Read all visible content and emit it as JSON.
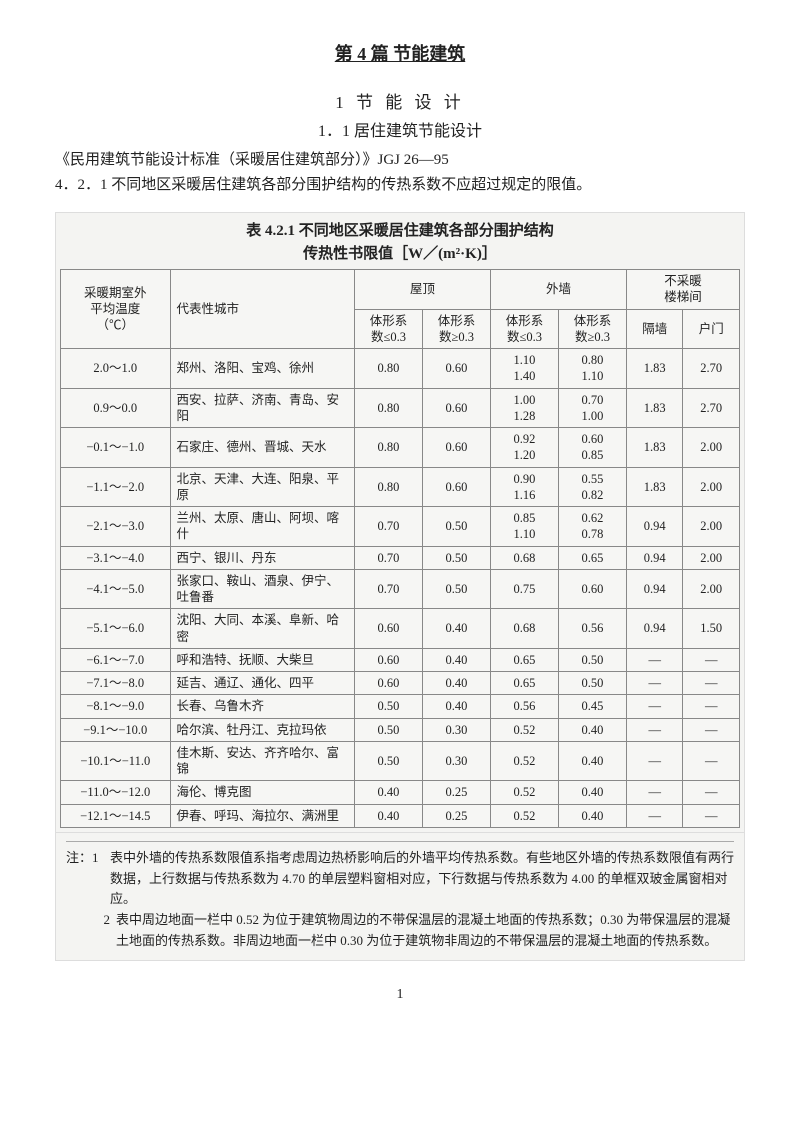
{
  "header": {
    "main_title": "第 4 篇  节能建筑",
    "section1": "1  节  能  设  计",
    "section2": "1．1  居住建筑节能设计",
    "para1": "《民用建筑节能设计标准（采暖居住建筑部分）》JGJ 26—95",
    "para2": "4．2．1  不同地区采暖居住建筑各部分围护结构的传热系数不应超过规定的限值。"
  },
  "table": {
    "title1": "表 4.2.1   不同地区采暖居住建筑各部分围护结构",
    "title2": "传热性书限值［W／(m²·K)］",
    "head": {
      "temp": "采暖期室外\n平均温度\n（℃）",
      "city": "代表性城市",
      "roof": "屋顶",
      "wall": "外墙",
      "stair": "不采暖\n楼梯间",
      "shape_le": "体形系\n数≤0.3",
      "shape_ge": "体形系\n数≥0.3",
      "partition": "隔墙",
      "door": "户门"
    },
    "rows": [
      {
        "temp": "2.0～1.0",
        "city": "郑州、洛阳、宝鸡、徐州",
        "roof_le": "0.80",
        "roof_ge": "0.60",
        "wall_le": "1.10\n1.40",
        "wall_ge": "0.80\n1.10",
        "part": "1.83",
        "door": "2.70"
      },
      {
        "temp": "0.9～0.0",
        "city": "西安、拉萨、济南、青岛、安阳",
        "roof_le": "0.80",
        "roof_ge": "0.60",
        "wall_le": "1.00\n1.28",
        "wall_ge": "0.70\n1.00",
        "part": "1.83",
        "door": "2.70"
      },
      {
        "temp": "−0.1～−1.0",
        "city": "石家庄、德州、晋城、天水",
        "roof_le": "0.80",
        "roof_ge": "0.60",
        "wall_le": "0.92\n1.20",
        "wall_ge": "0.60\n0.85",
        "part": "1.83",
        "door": "2.00"
      },
      {
        "temp": "−1.1～−2.0",
        "city": "北京、天津、大连、阳泉、平原",
        "roof_le": "0.80",
        "roof_ge": "0.60",
        "wall_le": "0.90\n1.16",
        "wall_ge": "0.55\n0.82",
        "part": "1.83",
        "door": "2.00"
      },
      {
        "temp": "−2.1～−3.0",
        "city": "兰州、太原、唐山、阿坝、喀什",
        "roof_le": "0.70",
        "roof_ge": "0.50",
        "wall_le": "0.85\n1.10",
        "wall_ge": "0.62\n0.78",
        "part": "0.94",
        "door": "2.00"
      },
      {
        "temp": "−3.1～−4.0",
        "city": "西宁、银川、丹东",
        "roof_le": "0.70",
        "roof_ge": "0.50",
        "wall_le": "0.68",
        "wall_ge": "0.65",
        "part": "0.94",
        "door": "2.00"
      },
      {
        "temp": "−4.1～−5.0",
        "city": "张家口、鞍山、酒泉、伊宁、吐鲁番",
        "roof_le": "0.70",
        "roof_ge": "0.50",
        "wall_le": "0.75",
        "wall_ge": "0.60",
        "part": "0.94",
        "door": "2.00"
      },
      {
        "temp": "−5.1～−6.0",
        "city": "沈阳、大同、本溪、阜新、哈密",
        "roof_le": "0.60",
        "roof_ge": "0.40",
        "wall_le": "0.68",
        "wall_ge": "0.56",
        "part": "0.94",
        "door": "1.50"
      },
      {
        "temp": "−6.1～−7.0",
        "city": "呼和浩特、抚顺、大柴旦",
        "roof_le": "0.60",
        "roof_ge": "0.40",
        "wall_le": "0.65",
        "wall_ge": "0.50",
        "part": "—",
        "door": "—"
      },
      {
        "temp": "−7.1～−8.0",
        "city": "延吉、通辽、通化、四平",
        "roof_le": "0.60",
        "roof_ge": "0.40",
        "wall_le": "0.65",
        "wall_ge": "0.50",
        "part": "—",
        "door": "—"
      },
      {
        "temp": "−8.1～−9.0",
        "city": "长春、乌鲁木齐",
        "roof_le": "0.50",
        "roof_ge": "0.40",
        "wall_le": "0.56",
        "wall_ge": "0.45",
        "part": "—",
        "door": "—"
      },
      {
        "temp": "−9.1～−10.0",
        "city": "哈尔滨、牡丹江、克拉玛依",
        "roof_le": "0.50",
        "roof_ge": "0.30",
        "wall_le": "0.52",
        "wall_ge": "0.40",
        "part": "—",
        "door": "—"
      },
      {
        "temp": "−10.1～−11.0",
        "city": "佳木斯、安达、齐齐哈尔、富锦",
        "roof_le": "0.50",
        "roof_ge": "0.30",
        "wall_le": "0.52",
        "wall_ge": "0.40",
        "part": "—",
        "door": "—"
      },
      {
        "temp": "−11.0～−12.0",
        "city": "海伦、博克图",
        "roof_le": "0.40",
        "roof_ge": "0.25",
        "wall_le": "0.52",
        "wall_ge": "0.40",
        "part": "—",
        "door": "—"
      },
      {
        "temp": "−12.1～−14.5",
        "city": "伊春、呼玛、海拉尔、满洲里",
        "roof_le": "0.40",
        "roof_ge": "0.25",
        "wall_le": "0.52",
        "wall_ge": "0.40",
        "part": "—",
        "door": "—"
      }
    ]
  },
  "notes": {
    "label": "注：1",
    "n1": "表中外墙的传热系数限值系指考虑周边热桥影响后的外墙平均传热系数。有些地区外墙的传热系数限值有两行数据，上行数据与传热系数为 4.70 的单层塑料窗相对应，下行数据与传热系数为 4.00 的单框双玻金属窗相对应。",
    "label2": "2",
    "n2": "表中周边地面一栏中 0.52 为位于建筑物周边的不带保温层的混凝土地面的传热系数；0.30 为带保温层的混凝土地面的传热系数。非周边地面一栏中 0.30 为位于建筑物非周边的不带保温层的混凝土地面的传热系数。"
  },
  "page_number": "1"
}
